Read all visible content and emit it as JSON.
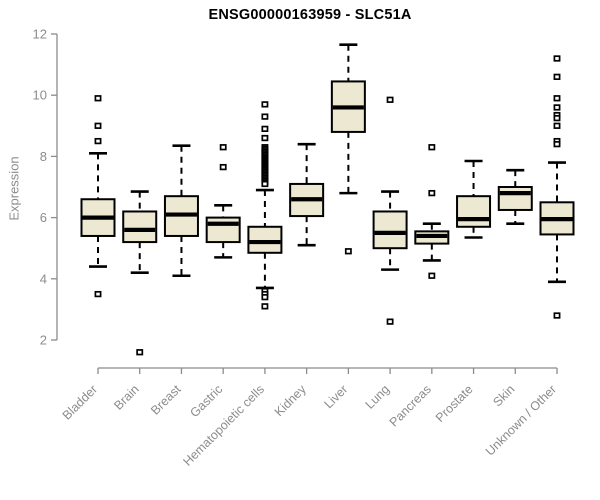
{
  "chart_data": {
    "type": "boxplot",
    "title": "ENSG00000163959 - SLC51A",
    "ylabel": "Expression",
    "xlabel": "",
    "ylim": [
      2,
      12
    ],
    "yticks": [
      2,
      4,
      6,
      8,
      10,
      12
    ],
    "grid": false,
    "legend": "none",
    "colors": {
      "box_fill": "#ede8d1",
      "box_stroke": "#000000",
      "axis": "#8c8c8c",
      "title": "#000000"
    },
    "categories": [
      "Bladder",
      "Brain",
      "Breast",
      "Gastric",
      "Hematopoietic cells",
      "Kidney",
      "Liver",
      "Lung",
      "Pancreas",
      "Prostate",
      "Skin",
      "Unknown / Other"
    ],
    "boxes": [
      {
        "category": "Bladder",
        "low": 4.4,
        "q1": 5.4,
        "median": 6.0,
        "q3": 6.6,
        "high": 8.1,
        "outliers": [
          9.9,
          9.0,
          8.5,
          3.5
        ]
      },
      {
        "category": "Brain",
        "low": 4.2,
        "q1": 5.2,
        "median": 5.6,
        "q3": 6.2,
        "high": 6.85,
        "outliers": [
          1.6
        ]
      },
      {
        "category": "Breast",
        "low": 4.1,
        "q1": 5.4,
        "median": 6.1,
        "q3": 6.7,
        "high": 8.35,
        "outliers": []
      },
      {
        "category": "Gastric",
        "low": 4.7,
        "q1": 5.2,
        "median": 5.8,
        "q3": 6.0,
        "high": 6.4,
        "outliers": [
          8.3,
          7.65
        ]
      },
      {
        "category": "Hematopoietic cells",
        "low": 3.7,
        "q1": 4.85,
        "median": 5.2,
        "q3": 5.7,
        "high": 6.9,
        "outliers": [
          9.7,
          9.3,
          8.9,
          8.6,
          8.3,
          8.25,
          8.2,
          8.15,
          8.1,
          8.05,
          8.0,
          7.95,
          7.9,
          7.85,
          7.8,
          7.75,
          7.7,
          7.65,
          7.6,
          7.55,
          7.5,
          7.45,
          7.4,
          7.35,
          7.3,
          7.25,
          7.2,
          7.15,
          7.1,
          3.6,
          3.5,
          3.4,
          3.1
        ]
      },
      {
        "category": "Kidney",
        "low": 5.1,
        "q1": 6.05,
        "median": 6.6,
        "q3": 7.1,
        "high": 8.4,
        "outliers": []
      },
      {
        "category": "Liver",
        "low": 6.8,
        "q1": 8.8,
        "median": 9.6,
        "q3": 10.45,
        "high": 11.65,
        "outliers": [
          4.9
        ]
      },
      {
        "category": "Lung",
        "low": 4.3,
        "q1": 5.0,
        "median": 5.5,
        "q3": 6.2,
        "high": 6.85,
        "outliers": [
          9.85,
          2.6
        ]
      },
      {
        "category": "Pancreas",
        "low": 4.6,
        "q1": 5.15,
        "median": 5.4,
        "q3": 5.55,
        "high": 5.8,
        "outliers": [
          8.3,
          6.8,
          4.1
        ]
      },
      {
        "category": "Prostate",
        "low": 5.35,
        "q1": 5.7,
        "median": 5.95,
        "q3": 6.7,
        "high": 7.85,
        "outliers": []
      },
      {
        "category": "Skin",
        "low": 5.8,
        "q1": 6.25,
        "median": 6.8,
        "q3": 7.0,
        "high": 7.55,
        "outliers": []
      },
      {
        "category": "Unknown / Other",
        "low": 3.9,
        "q1": 5.45,
        "median": 5.95,
        "q3": 6.5,
        "high": 7.8,
        "outliers": [
          11.2,
          10.6,
          9.9,
          9.6,
          9.35,
          9.25,
          9.0,
          8.5,
          8.4,
          2.8
        ]
      }
    ]
  }
}
